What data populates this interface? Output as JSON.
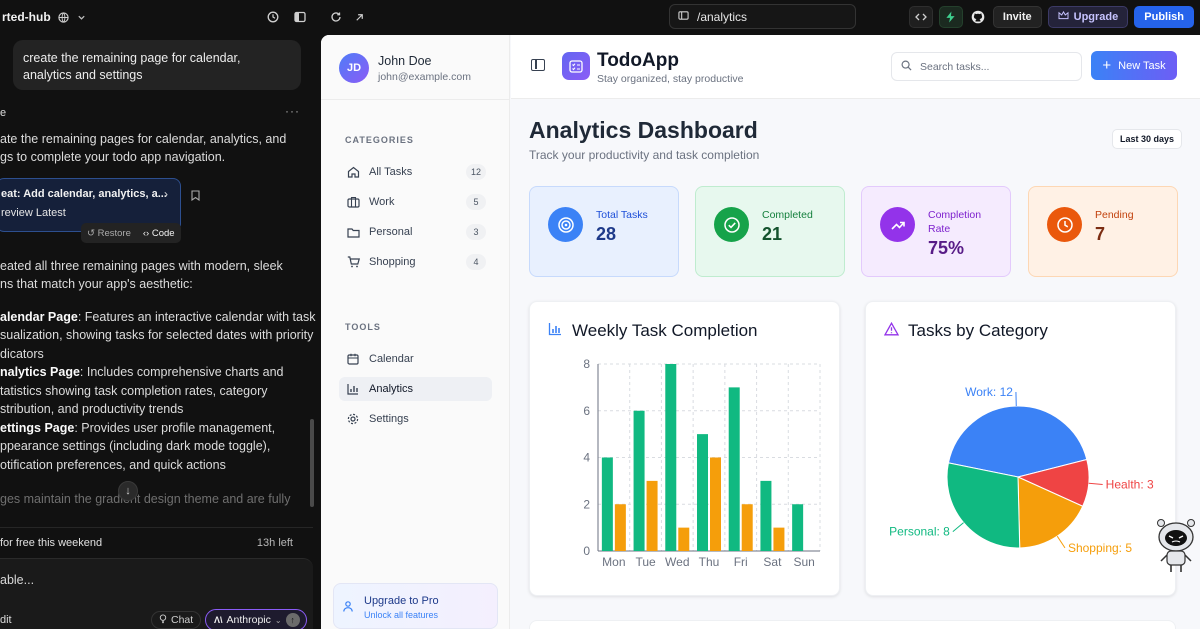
{
  "topbar": {
    "project": "rted-hub",
    "url": "/analytics",
    "invite": "Invite",
    "upgrade": "Upgrade",
    "publish": "Publish"
  },
  "chat": {
    "user_message": "create the remaining page for calendar, analytics and settings",
    "reply_intro_1": "ate the remaining pages for calendar, analytics, and",
    "reply_intro_2": "gs to complete your todo app navigation.",
    "commit_title": "eat: Add calendar, analytics, a...",
    "commit_preview": "review Latest",
    "restore": "Restore",
    "code": "Code",
    "summary_1": "eated all three remaining pages with modern, sleek",
    "summary_2": "ns that match your app's aesthetic:",
    "cal_bold": "alendar Page",
    "cal_1": ": Features an interactive calendar with task",
    "cal_2": "sualization, showing tasks for selected dates with priority",
    "cal_3": "dicators",
    "ana_bold": "nalytics Page",
    "ana_1": ": Includes comprehensive charts and",
    "ana_2": "tatistics showing task completion rates, category",
    "ana_3": "stribution, and productivity trends",
    "set_bold": "ettings Page",
    "set_1": ": Provides user profile management,",
    "set_2": "ppearance settings (including dark mode toggle),",
    "set_3": "otification preferences, and quick actions",
    "fade_line": "ges maintain the gradient design theme and are fully",
    "free_text": "for free this weekend",
    "time_left": "13h left",
    "input_placeholder": "able...",
    "edit_label": "dit",
    "chat_mode": "Chat",
    "model": "Anthropic"
  },
  "app": {
    "user": {
      "initials": "JD",
      "name": "John Doe",
      "email": "john@example.com"
    },
    "categories_title": "CATEGORIES",
    "categories": [
      {
        "label": "All Tasks",
        "count": "12",
        "icon": "home-icon"
      },
      {
        "label": "Work",
        "count": "5",
        "icon": "briefcase-icon"
      },
      {
        "label": "Personal",
        "count": "3",
        "icon": "folder-icon"
      },
      {
        "label": "Shopping",
        "count": "4",
        "icon": "cart-icon"
      }
    ],
    "tools_title": "TOOLS",
    "tools": [
      {
        "label": "Calendar",
        "icon": "calendar-icon"
      },
      {
        "label": "Analytics",
        "icon": "bar-chart-icon",
        "active": true
      },
      {
        "label": "Settings",
        "icon": "gear-icon"
      }
    ],
    "upgrade_title": "Upgrade to Pro",
    "upgrade_sub": "Unlock all features",
    "title": "TodoApp",
    "subtitle": "Stay organized, stay productive",
    "search_placeholder": "Search tasks...",
    "new_task": "New Task",
    "dashboard_title": "Analytics Dashboard",
    "dashboard_sub": "Track your productivity and task completion",
    "range": "Last 30 days",
    "stats": [
      {
        "label": "Total Tasks",
        "value": "28",
        "color": "#3b82f6"
      },
      {
        "label": "Completed",
        "value": "21",
        "color": "#16a34a"
      },
      {
        "label": "Completion Rate",
        "value": "75%",
        "color": "#9333ea"
      },
      {
        "label": "Pending",
        "value": "7",
        "color": "#ea580c"
      }
    ],
    "weekly_title": "Weekly Task Completion",
    "category_title": "Tasks by Category"
  },
  "chart_data": [
    {
      "type": "bar",
      "title": "Weekly Task Completion",
      "categories": [
        "Mon",
        "Tue",
        "Wed",
        "Thu",
        "Fri",
        "Sat",
        "Sun"
      ],
      "series": [
        {
          "values": [
            4,
            6,
            8,
            5,
            7,
            3,
            2
          ],
          "color": "#10b981"
        },
        {
          "values": [
            2,
            3,
            1,
            4,
            2,
            1,
            0
          ],
          "color": "#f59e0b"
        }
      ],
      "yticks": [
        0,
        2,
        4,
        6,
        8
      ],
      "ylim": [
        0,
        8
      ],
      "grid": true
    },
    {
      "type": "pie",
      "title": "Tasks by Category",
      "slices": [
        {
          "label": "Work",
          "value": 12,
          "color": "#3b82f6"
        },
        {
          "label": "Health",
          "value": 3,
          "color": "#ef4444"
        },
        {
          "label": "Shopping",
          "value": 5,
          "color": "#f59e0b"
        },
        {
          "label": "Personal",
          "value": 8,
          "color": "#10b981"
        }
      ]
    }
  ]
}
